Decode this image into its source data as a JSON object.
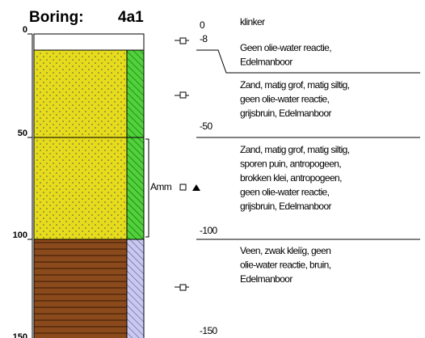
{
  "header": {
    "title": "Boring:",
    "id": "4a1"
  },
  "axis": {
    "ticks": [
      "0",
      "50",
      "100",
      "150"
    ]
  },
  "depths": [
    "0",
    "-8",
    "-50",
    "-100",
    "-150"
  ],
  "sample": {
    "label": "Amm"
  },
  "layers": [
    {
      "lines": [
        "klinker"
      ]
    },
    {
      "lines": [
        "Geen olie-water reactie,",
        "Edelmanboor"
      ]
    },
    {
      "lines": [
        "Zand, matig grof, matig siltig,",
        "geen olie-water reactie,",
        "grijsbruin, Edelmanboor"
      ]
    },
    {
      "lines": [
        "Zand, matig grof, matig siltig,",
        "sporen puin, antropogeen,",
        "brokken klei, antropogeen,",
        "geen olie-water reactie,",
        "grijsbruin, Edelmanboor"
      ]
    },
    {
      "lines": [
        "Veen, zwak kleiïg, geen",
        "olie-water reactie, bruin,",
        "Edelmanboor"
      ]
    }
  ]
}
